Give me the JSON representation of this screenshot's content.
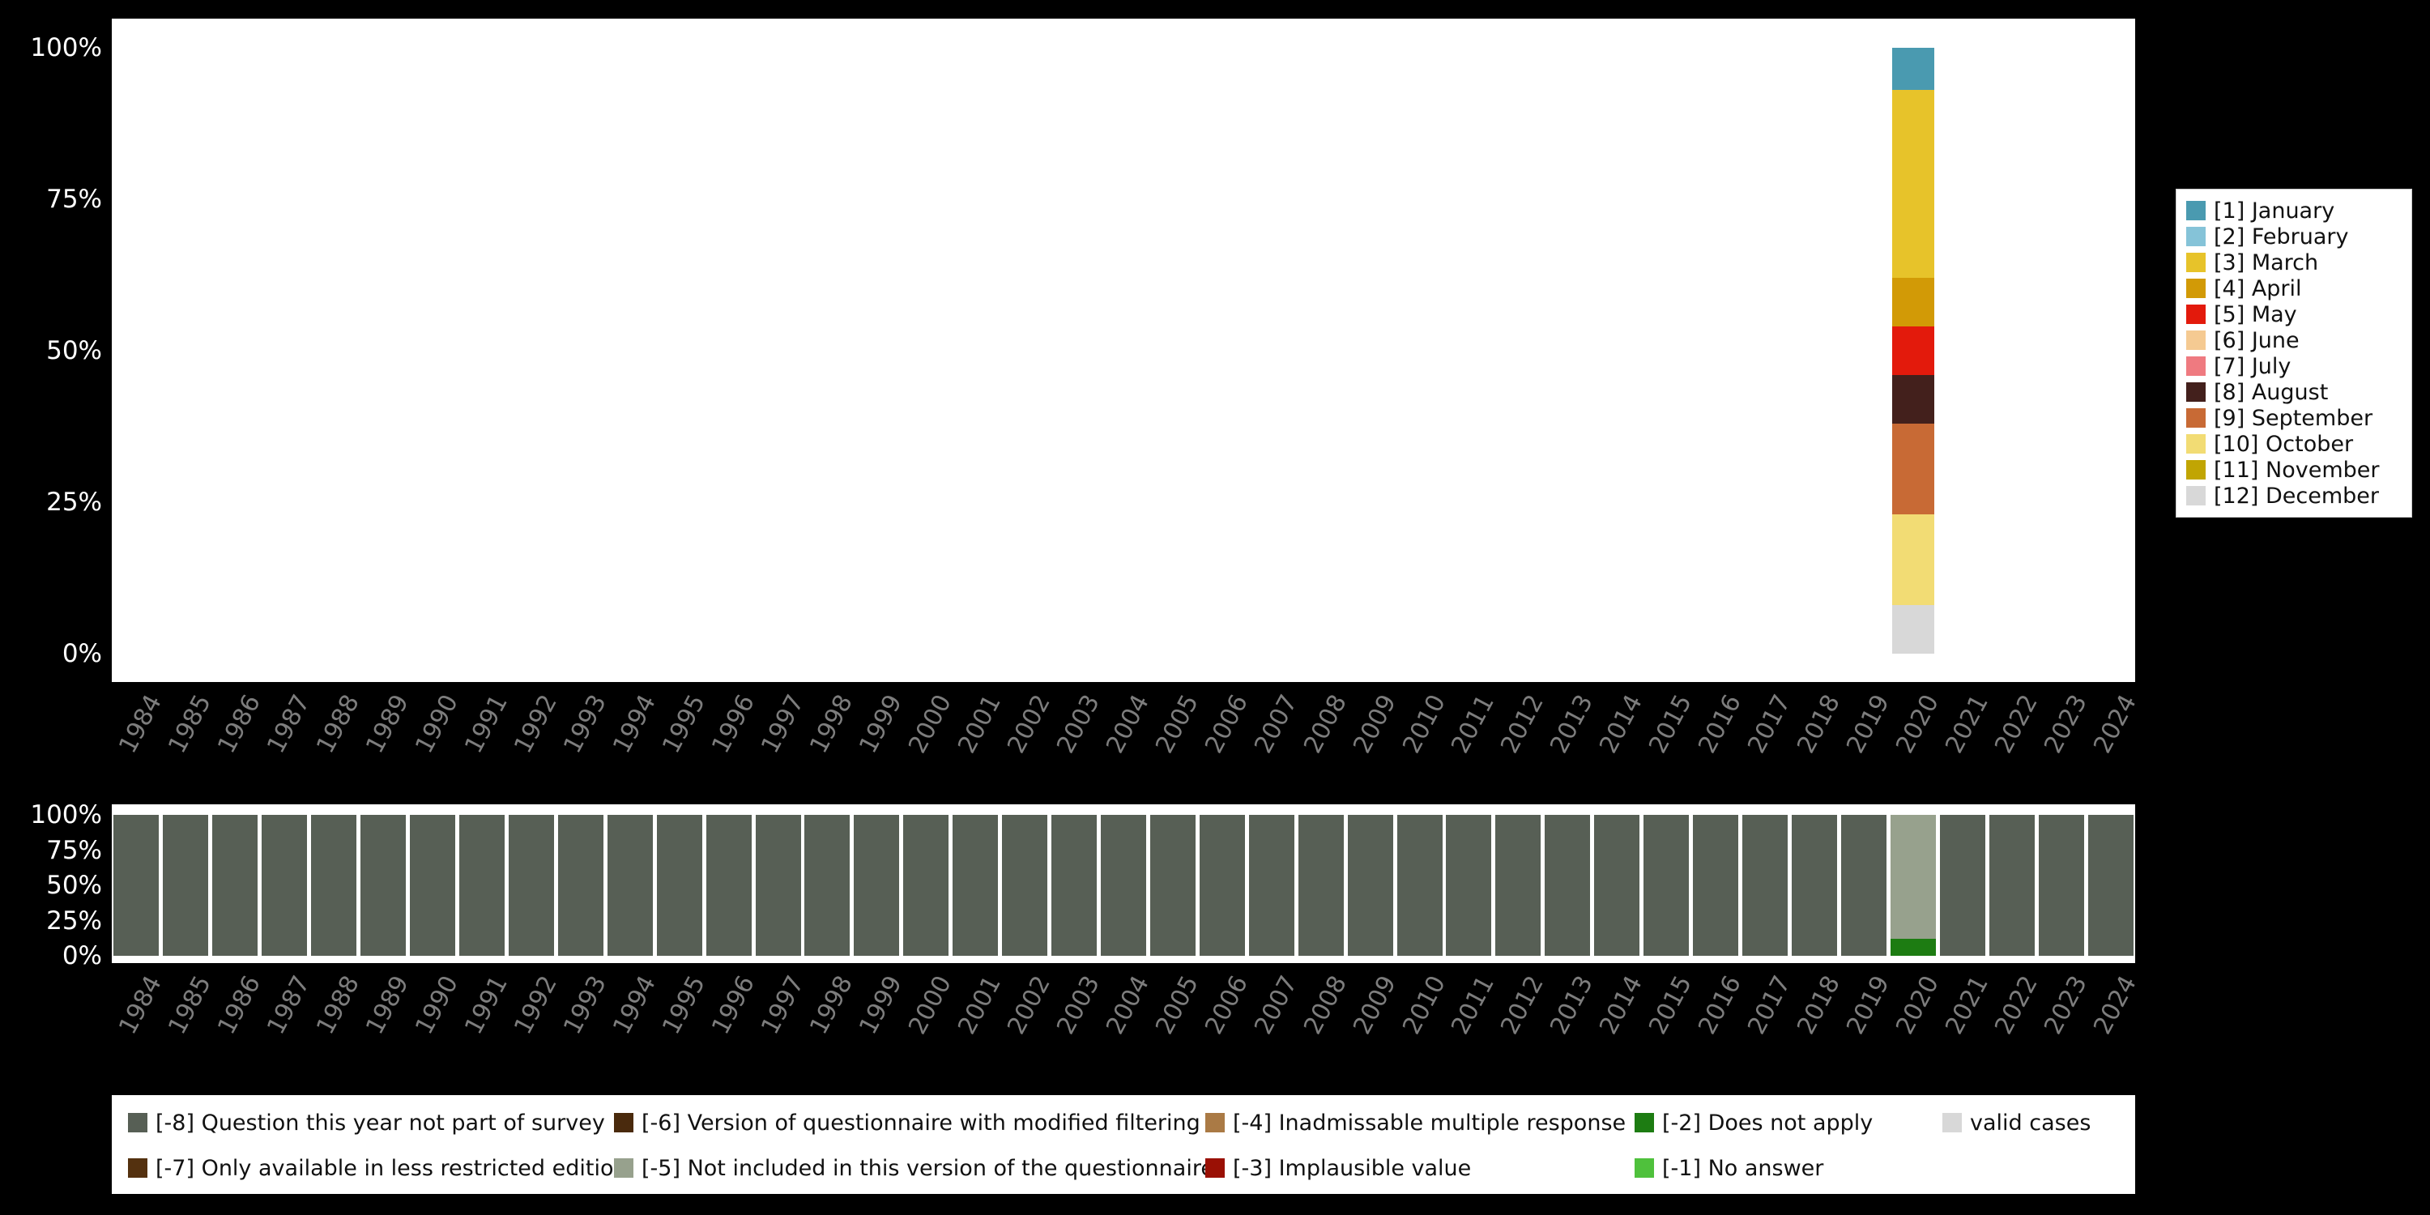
{
  "page": {
    "background": "#000000",
    "plot_background": "#ffffff",
    "axis_label_color": "#7d7d7d",
    "ytick_color": "#ffffff"
  },
  "years": [
    "1984",
    "1985",
    "1986",
    "1987",
    "1988",
    "1989",
    "1990",
    "1991",
    "1992",
    "1993",
    "1994",
    "1995",
    "1996",
    "1997",
    "1998",
    "1999",
    "2000",
    "2001",
    "2002",
    "2003",
    "2004",
    "2005",
    "2006",
    "2007",
    "2008",
    "2009",
    "2010",
    "2011",
    "2012",
    "2013",
    "2014",
    "2015",
    "2016",
    "2017",
    "2018",
    "2019",
    "2020",
    "2021",
    "2022",
    "2023",
    "2024"
  ],
  "chart_data": [
    {
      "id": "month-distribution-by-year",
      "type": "bar",
      "stacked": true,
      "title": "",
      "xlabel": "",
      "ylabel": "",
      "ylim": [
        0,
        100
      ],
      "grid": false,
      "legend_position": "right",
      "yticks": [
        {
          "label": "0%",
          "value": 0
        },
        {
          "label": "25%",
          "value": 25
        },
        {
          "label": "50%",
          "value": 50
        },
        {
          "label": "75%",
          "value": 75
        },
        {
          "label": "100%",
          "value": 100
        }
      ],
      "legend": [
        {
          "label": "[1] January",
          "color": "#4a9ab0"
        },
        {
          "label": "[2] February",
          "color": "#85c3d8"
        },
        {
          "label": "[3] March",
          "color": "#e7c32a"
        },
        {
          "label": "[4] April",
          "color": "#d29a06"
        },
        {
          "label": "[5] May",
          "color": "#e31a0c"
        },
        {
          "label": "[6] June",
          "color": "#f5ca92"
        },
        {
          "label": "[7] July",
          "color": "#ef7a80"
        },
        {
          "label": "[8] August",
          "color": "#43201c"
        },
        {
          "label": "[9] September",
          "color": "#c86a35"
        },
        {
          "label": "[10] October",
          "color": "#f2dc74"
        },
        {
          "label": "[11] November",
          "color": "#c1a503"
        },
        {
          "label": "[12] December",
          "color": "#d8d8d8"
        }
      ],
      "default_bar": [],
      "bars": {
        "2020": [
          {
            "name": "[1] January",
            "color": "#4a9ab0",
            "value": 7
          },
          {
            "name": "[3] March",
            "color": "#e7c32a",
            "value": 31
          },
          {
            "name": "[4] April",
            "color": "#d29a06",
            "value": 8
          },
          {
            "name": "[5] May",
            "color": "#e31a0c",
            "value": 8
          },
          {
            "name": "[8] August",
            "color": "#43201c",
            "value": 8
          },
          {
            "name": "[9] September",
            "color": "#c86a35",
            "value": 15
          },
          {
            "name": "[10] October",
            "color": "#f2dc74",
            "value": 15
          },
          {
            "name": "[12] December",
            "color": "#d8d8d8",
            "value": 8
          }
        ]
      }
    },
    {
      "id": "missing-values-by-year",
      "type": "bar",
      "stacked": true,
      "title": "",
      "xlabel": "",
      "ylabel": "",
      "ylim": [
        0,
        100
      ],
      "grid": false,
      "legend_position": "bottom",
      "yticks": [
        {
          "label": "0%",
          "value": 0
        },
        {
          "label": "25%",
          "value": 25
        },
        {
          "label": "50%",
          "value": 50
        },
        {
          "label": "75%",
          "value": 75
        },
        {
          "label": "100%",
          "value": 100
        }
      ],
      "default_bar": [
        {
          "name": "[-8] Question this year not part of survey",
          "color": "#575f55",
          "value": 100
        }
      ],
      "bars": {
        "2020": [
          {
            "name": "[-5] Not included in this version of the questionnaire",
            "color": "#97a18d",
            "value": 88
          },
          {
            "name": "[-2] Does not apply",
            "color": "#1d7c12",
            "value": 12
          }
        ]
      },
      "legend_columns": [
        [
          {
            "label": "[-8] Question this year not part of survey",
            "color": "#575f55"
          },
          {
            "label": "[-7] Only available in less restricted edition",
            "color": "#54310f"
          }
        ],
        [
          {
            "label": "[-6] Version of questionnaire with modified filtering",
            "color": "#4a2a0d"
          },
          {
            "label": "[-5] Not included in this version of the questionnaire",
            "color": "#97a18d"
          }
        ],
        [
          {
            "label": "[-4] Inadmissable multiple response",
            "color": "#aa7a45"
          },
          {
            "label": "[-3] Implausible value",
            "color": "#9a1005"
          }
        ],
        [
          {
            "label": "[-2] Does not apply",
            "color": "#1d7c12"
          },
          {
            "label": "[-1] No answer",
            "color": "#4fc13c"
          }
        ],
        [
          {
            "label": "valid cases",
            "color": "#d8d8d8"
          }
        ]
      ]
    }
  ]
}
